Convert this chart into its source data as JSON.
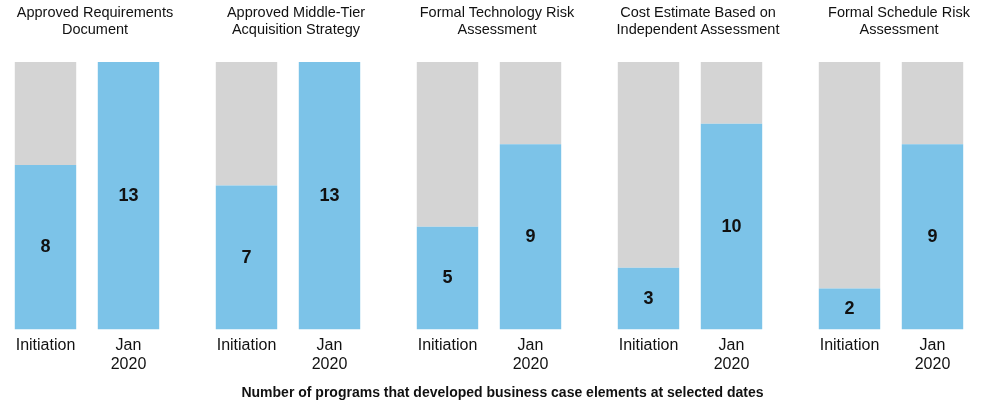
{
  "chart_data": [
    {
      "type": "bar",
      "title": "Approved Requirements Document",
      "categories": [
        "Initiation",
        "Jan 2020"
      ],
      "stacked": true,
      "ylim": [
        0,
        13
      ],
      "tick_labels": "x",
      "annotations": [
        "Number of programs that developed business case elements at selected dates"
      ],
      "series": [
        {
          "color": "#7cc3e8",
          "values": [
            8,
            13
          ],
          "value_labels": [
            "8",
            "13"
          ]
        },
        {
          "color": "#d4d4d4",
          "values": [
            5,
            0
          ]
        }
      ]
    },
    {
      "type": "bar",
      "title": "Approved Middle-Tier Acquisition Strategy",
      "categories": [
        "Initiation",
        "Jan 2020"
      ],
      "stacked": true,
      "ylim": [
        0,
        13
      ],
      "tick_labels": "x",
      "series": [
        {
          "color": "#7cc3e8",
          "values": [
            7,
            13
          ],
          "value_labels": [
            "7",
            "13"
          ]
        },
        {
          "color": "#d4d4d4",
          "values": [
            6,
            0
          ]
        }
      ]
    },
    {
      "type": "bar",
      "title": "Formal Technology Risk Assessment",
      "categories": [
        "Initiation",
        "Jan 2020"
      ],
      "stacked": true,
      "ylim": [
        0,
        13
      ],
      "tick_labels": "x",
      "series": [
        {
          "color": "#7cc3e8",
          "values": [
            5,
            9
          ],
          "value_labels": [
            "5",
            "9"
          ]
        },
        {
          "color": "#d4d4d4",
          "values": [
            8,
            4
          ]
        }
      ]
    },
    {
      "type": "bar",
      "title": "Cost Estimate Based on Independent Assessment",
      "categories": [
        "Initiation",
        "Jan 2020"
      ],
      "stacked": true,
      "ylim": [
        0,
        13
      ],
      "tick_labels": "x",
      "series": [
        {
          "color": "#7cc3e8",
          "values": [
            3,
            10
          ],
          "value_labels": [
            "3",
            "10"
          ]
        },
        {
          "color": "#d4d4d4",
          "values": [
            10,
            3
          ]
        }
      ]
    },
    {
      "type": "bar",
      "title": "Formal Schedule Risk Assessment",
      "categories": [
        "Initiation",
        "Jan 2020"
      ],
      "stacked": true,
      "ylim": [
        0,
        13
      ],
      "tick_labels": "x",
      "series": [
        {
          "color": "#7cc3e8",
          "values": [
            2,
            9
          ],
          "value_labels": [
            "2",
            "9"
          ]
        },
        {
          "color": "#d4d4d4",
          "values": [
            11,
            4
          ]
        }
      ]
    }
  ]
}
